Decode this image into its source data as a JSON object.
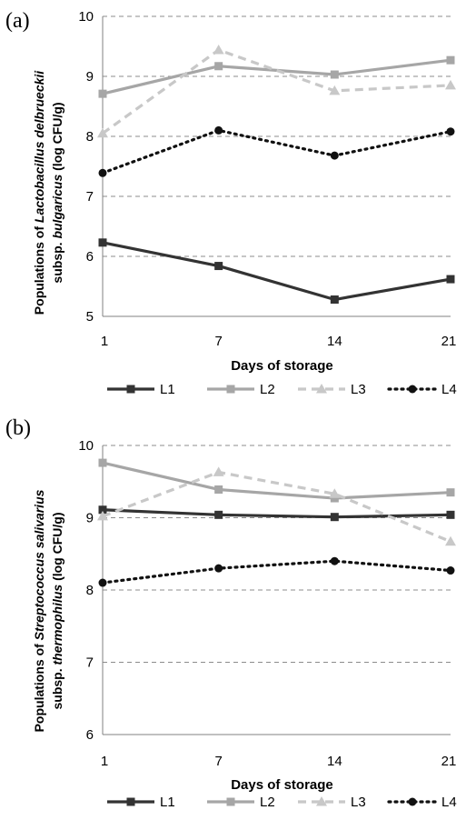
{
  "chart_data": [
    {
      "type": "line",
      "panel_label": "(a)",
      "categories": [
        "1",
        "7",
        "14",
        "21"
      ],
      "xlabel": "Days of storage",
      "ylabel": {
        "pre": "Populations of ",
        "italic1": "Lactobacillus delbrueckii",
        "line2_pre": "subsp. ",
        "italic2": "bulgaricus",
        "line2_post": "  (log CFU/g)"
      },
      "ylim": [
        5,
        10
      ],
      "yticks": [
        "5",
        "6",
        "7",
        "8",
        "9",
        "10"
      ],
      "grid": true,
      "legend_position": "bottom",
      "series": [
        {
          "name": "L1",
          "values": [
            6.23,
            5.84,
            5.28,
            5.62
          ],
          "color": "#333333",
          "dash": "solid",
          "marker": "square"
        },
        {
          "name": "L2",
          "values": [
            8.71,
            9.17,
            9.03,
            9.27
          ],
          "color": "#a6a6a6",
          "dash": "solid",
          "marker": "square"
        },
        {
          "name": "L3",
          "values": [
            8.05,
            9.44,
            8.76,
            8.85
          ],
          "color": "#c8c8c8",
          "dash": "dashed",
          "marker": "triangle"
        },
        {
          "name": "L4",
          "values": [
            7.39,
            8.1,
            7.68,
            8.08
          ],
          "color": "#111111",
          "dash": "dotted",
          "marker": "circle"
        }
      ]
    },
    {
      "type": "line",
      "panel_label": "(b)",
      "categories": [
        "1",
        "7",
        "14",
        "21"
      ],
      "xlabel": "Days of storage",
      "ylabel": {
        "pre": "Populations of ",
        "italic1": "Streptococcus salivarius",
        "line2_pre": "subsp. ",
        "italic2": "thermophilus",
        "line2_post": " (log CFU/g)"
      },
      "ylim": [
        6,
        10
      ],
      "yticks": [
        "6",
        "7",
        "8",
        "9",
        "10"
      ],
      "grid": true,
      "legend_position": "bottom",
      "series": [
        {
          "name": "L1",
          "values": [
            9.11,
            9.04,
            9.01,
            9.04
          ],
          "color": "#333333",
          "dash": "solid",
          "marker": "square"
        },
        {
          "name": "L2",
          "values": [
            9.76,
            9.39,
            9.27,
            9.35
          ],
          "color": "#a6a6a6",
          "dash": "solid",
          "marker": "square"
        },
        {
          "name": "L3",
          "values": [
            9.02,
            9.63,
            9.33,
            8.67
          ],
          "color": "#c8c8c8",
          "dash": "dashed",
          "marker": "triangle"
        },
        {
          "name": "L4",
          "values": [
            8.1,
            8.3,
            8.4,
            8.27
          ],
          "color": "#111111",
          "dash": "dotted",
          "marker": "circle"
        }
      ]
    }
  ]
}
